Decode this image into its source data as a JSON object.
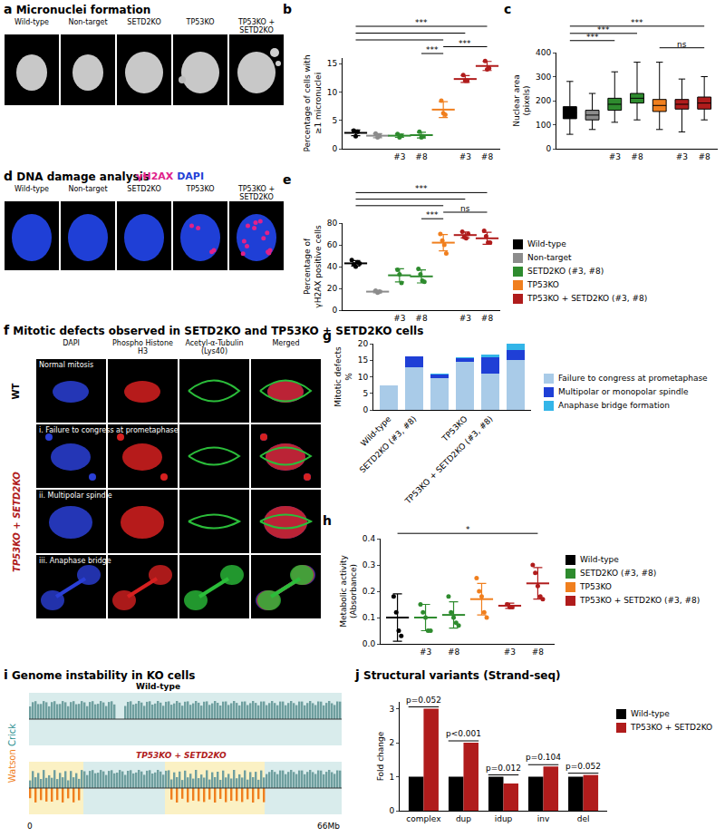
{
  "sections": [
    {
      "letter": "a",
      "title": "Micronuclei formation"
    },
    {
      "letter": "b"
    },
    {
      "letter": "c"
    },
    {
      "letter": "d",
      "title": "DNA damage analysis"
    },
    {
      "letter": "e"
    },
    {
      "letter": "f",
      "title": "Mitotic defects observed in SETD2KO and TP53KO + SETD2KO cells"
    },
    {
      "letter": "g"
    },
    {
      "letter": "h"
    },
    {
      "letter": "i",
      "title": "Genome instability in KO cells"
    },
    {
      "letter": "j",
      "title": "Structural variants (Strand-seq)"
    }
  ],
  "images": {
    "a": {
      "labels": [
        "Wild-type",
        "Non-target",
        "SETD2KO",
        "TP53KO",
        "TP53KO + SETD2KO"
      ]
    },
    "d": {
      "labels": [
        "Wild-type",
        "Non-target",
        "SETD2KO",
        "TP53KO",
        "TP53KO + SETD2KO"
      ],
      "stains": [
        {
          "name": "γH2AX",
          "color": "#e0218a"
        },
        {
          "name": "DAPI",
          "color": "#1f3fd6"
        }
      ]
    },
    "f": {
      "columns": [
        "DAPI",
        "Phospho Histone H3",
        "Acetyl-α-Tubulin (Lys40)",
        "Merged"
      ],
      "groups": [
        {
          "name": "WT",
          "rows": [
            "Normal mitosis"
          ]
        },
        {
          "name": "TP53KO + SETD2KO",
          "rows": [
            "i. Failure to congress at prometaphase",
            "ii. Multipolar spindle",
            "iii. Anaphase bridge"
          ]
        }
      ]
    },
    "i": {
      "samples": [
        "Wild-type",
        "TP53KO + SETD2KO"
      ],
      "strands": [
        {
          "name": "Watson",
          "color": "#f07f1e"
        },
        {
          "name": "Crick",
          "color": "#2a8f8f"
        }
      ],
      "axis": [
        "0",
        "66Mb"
      ]
    }
  },
  "chart_data": [
    {
      "type": "scatter",
      "y_label": [
        "Percentage of cells with",
        "≥1 micronuclei"
      ],
      "categories": [
        null,
        null,
        "#3",
        "#8",
        null,
        "#3",
        "#8"
      ],
      "colors": [
        "#000000",
        "#8c8c8c",
        "#2e8b2e",
        "#2e8b2e",
        "#f07f1e",
        "#b01c1c",
        "#b01c1c"
      ],
      "points": [
        [
          3.2,
          2.2,
          3.0
        ],
        [
          2.7,
          2.0,
          2.3
        ],
        [
          2.6,
          2.0,
          2.3
        ],
        [
          3.0,
          2.0,
          2.2
        ],
        [
          8.5,
          6.3,
          6.0
        ],
        [
          13.0,
          12.0,
          12.0
        ],
        [
          15.5,
          14.0,
          14.2
        ]
      ],
      "means": [
        2.8,
        2.3,
        2.3,
        2.4,
        6.9,
        12.3,
        14.6
      ],
      "sd": [
        0.5,
        0.35,
        0.3,
        0.5,
        1.4,
        0.6,
        0.8
      ],
      "ylim": [
        0,
        16
      ],
      "yticks": [
        0,
        5,
        10,
        15
      ],
      "brackets": [
        {
          "from": 3,
          "to": 4,
          "label": "***"
        },
        {
          "from": 4,
          "to": 6,
          "label": "***"
        },
        {
          "from": 0,
          "to": 4
        },
        {
          "from": 0,
          "to": 5
        },
        {
          "from": 0,
          "to": 6,
          "label": "***"
        }
      ]
    },
    {
      "type": "box",
      "y_label": [
        "Nuclear area",
        "(pixels)"
      ],
      "categories": [
        null,
        null,
        "#3",
        "#8",
        null,
        "#3",
        "#8"
      ],
      "colors": [
        "#000000",
        "#8c8c8c",
        "#2e8b2e",
        "#2e8b2e",
        "#f07f1e",
        "#b01c1c",
        "#b01c1c"
      ],
      "q1": [
        125,
        120,
        160,
        190,
        155,
        165,
        165
      ],
      "median": [
        150,
        140,
        185,
        210,
        180,
        185,
        190
      ],
      "q3": [
        175,
        160,
        210,
        230,
        205,
        205,
        215
      ],
      "whisker_low": [
        60,
        80,
        110,
        120,
        80,
        70,
        120
      ],
      "whisker_high": [
        280,
        230,
        320,
        360,
        360,
        290,
        300
      ],
      "ylim": [
        0,
        400
      ],
      "yticks": [
        0,
        100,
        200,
        300,
        400
      ],
      "brackets": [
        {
          "from": 4,
          "to": 6,
          "label": "ns"
        },
        {
          "from": 0,
          "to": 2,
          "label": "***"
        },
        {
          "from": 0,
          "to": 3,
          "label": "***"
        },
        {
          "from": 0,
          "to": 6,
          "label": "***"
        }
      ]
    },
    {
      "type": "scatter",
      "y_label": [
        "Percentage of",
        "γH2AX positive cells"
      ],
      "categories": [
        null,
        null,
        "#3",
        "#8",
        null,
        "#3",
        "#8"
      ],
      "colors": [
        "#000000",
        "#8c8c8c",
        "#2e8b2e",
        "#2e8b2e",
        "#f07f1e",
        "#b01c1c",
        "#b01c1c"
      ],
      "points": [
        [
          46,
          42,
          40,
          44,
          43
        ],
        [
          18,
          16,
          17
        ],
        [
          37,
          33,
          25
        ],
        [
          38,
          33,
          27,
          26
        ],
        [
          70,
          64,
          60,
          52
        ],
        [
          72,
          67,
          66,
          70
        ],
        [
          73,
          68,
          62,
          62
        ]
      ],
      "means": [
        43,
        17,
        32,
        31,
        62,
        69,
        66
      ],
      "sd": [
        2.5,
        1.0,
        6.0,
        6.0,
        7.5,
        2.7,
        5.5
      ],
      "ylim": [
        0,
        80
      ],
      "yticks": [
        0,
        20,
        40,
        60,
        80
      ],
      "brackets": [
        {
          "from": 3,
          "to": 4,
          "label": "***"
        },
        {
          "from": 4,
          "to": 6,
          "label": "ns"
        },
        {
          "from": 0,
          "to": 4
        },
        {
          "from": 0,
          "to": 5
        },
        {
          "from": 0,
          "to": 6,
          "label": "***"
        }
      ],
      "legend_entries": [
        {
          "name": "Wild-type",
          "color": "#000000"
        },
        {
          "name": "Non-target",
          "color": "#8c8c8c"
        },
        {
          "name": "SETD2KO (#3, #8)",
          "color": "#2e8b2e"
        },
        {
          "name": "TP53KO",
          "color": "#f07f1e"
        },
        {
          "name": "TP53KO + SETD2KO (#3, #8)",
          "color": "#b01c1c"
        }
      ]
    },
    {
      "type": "bar",
      "stacked": true,
      "y_label": [
        "Mitotic defects",
        "%"
      ],
      "categories": [
        "Wild-type",
        "SETD2KO (#3, #8)",
        null,
        "TP53KO",
        "TP53KO + SETD2KO (#3, #8)",
        null
      ],
      "series": [
        {
          "name": "Failure to congress at prometaphase",
          "color": "#a9cbe8",
          "values": [
            7.3,
            13.0,
            9.5,
            14.5,
            11.0,
            15.0
          ]
        },
        {
          "name": "Multipolar or monopolar spindle",
          "color": "#1f3fd6",
          "values": [
            0,
            3.2,
            1.2,
            1.0,
            5.0,
            3.0
          ]
        },
        {
          "name": "Anaphase bridge formation",
          "color": "#33b5e8",
          "values": [
            0,
            0,
            0.3,
            0.5,
            0.8,
            2.0
          ]
        }
      ],
      "ylim": [
        0,
        20
      ],
      "yticks": [
        0,
        5,
        10,
        15,
        20
      ]
    },
    {
      "type": "scatter",
      "y_label": [
        "Metabolic activity",
        "(Absorbance)"
      ],
      "categories": [
        null,
        "#3",
        "#8",
        null,
        "#3",
        "#8"
      ],
      "colors": [
        "#000000",
        "#2e8b2e",
        "#2e8b2e",
        "#f07f1e",
        "#b01c1c",
        "#b01c1c"
      ],
      "points": [
        [
          0.18,
          0.12,
          0.05,
          0.03
        ],
        [
          0.15,
          0.12,
          0.1,
          0.05,
          0.05
        ],
        [
          0.18,
          0.12,
          0.1,
          0.08,
          0.07
        ],
        [
          0.25,
          0.2,
          0.18,
          0.12,
          0.1
        ],
        [
          0.15,
          0.14,
          0.14
        ],
        [
          0.3,
          0.27,
          0.22,
          0.18,
          0.17
        ]
      ],
      "means": [
        0.1,
        0.1,
        0.11,
        0.17,
        0.145,
        0.23
      ],
      "sd": [
        0.09,
        0.05,
        0.05,
        0.06,
        0.01,
        0.06
      ],
      "ylim": [
        0,
        0.4
      ],
      "yticks": [
        {
          "value": 0,
          "label": "0.0"
        },
        0.1,
        0.2,
        0.3,
        0.4
      ],
      "brackets": [
        {
          "from": 0,
          "to": 5,
          "label": "*"
        }
      ],
      "legend_entries": [
        {
          "name": "Wild-type",
          "color": "#000000"
        },
        {
          "name": "SETD2KO (#3, #8)",
          "color": "#2e8b2e"
        },
        {
          "name": "TP53KO",
          "color": "#f07f1e"
        },
        {
          "name": "TP53KO + SETD2KO (#3, #8)",
          "color": "#b01c1c"
        }
      ]
    },
    {
      "type": "bar",
      "y_label": [
        "Fold change"
      ],
      "categories": [
        "complex",
        "dup",
        "idup",
        "inv",
        "del"
      ],
      "series": [
        {
          "name": "Wild-type",
          "color": "#000000",
          "values": [
            1,
            1,
            1,
            1,
            1
          ]
        },
        {
          "name": "TP53KO + SETD2KO",
          "color": "#b01c1c",
          "values": [
            3.0,
            2.0,
            0.8,
            1.3,
            1.05
          ]
        }
      ],
      "annotations": [
        "p=0.052",
        "p<0.001",
        "p=0.012",
        "p=0.104",
        "p=0.052"
      ],
      "ylim": [
        0,
        3.2
      ],
      "yticks": [
        0,
        1,
        2,
        3
      ]
    }
  ]
}
